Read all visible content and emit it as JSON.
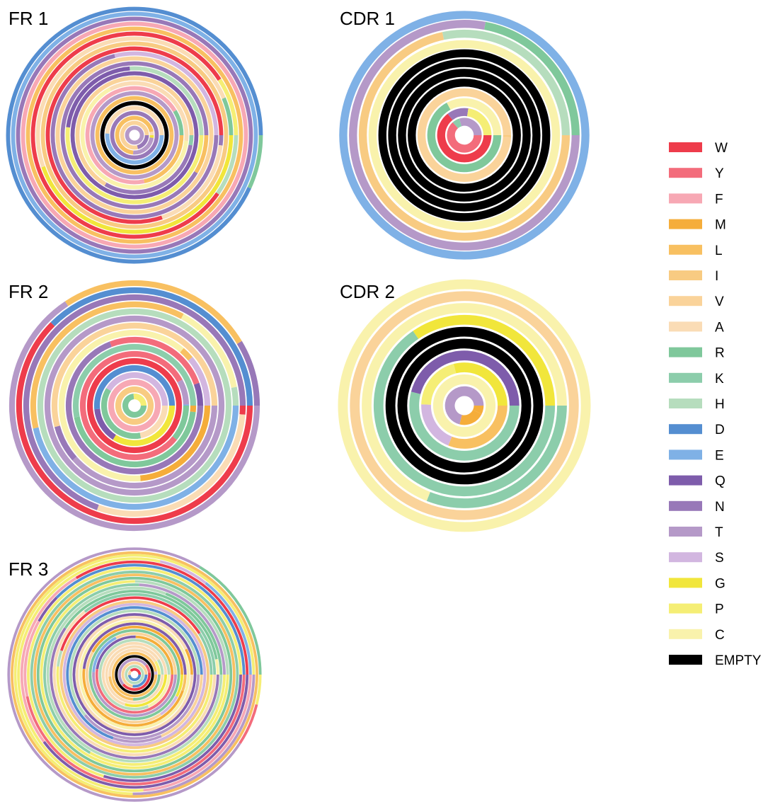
{
  "chart_data": {
    "type": "concentric-ring",
    "palette": {
      "W": "#ee3c4b",
      "Y": "#f36c7b",
      "F": "#f7a8b4",
      "M": "#f5ad3a",
      "L": "#f8c061",
      "I": "#f8cb82",
      "V": "#fad39a",
      "A": "#fadcb5",
      "R": "#7fc89b",
      "K": "#8ccdab",
      "H": "#b6ddbd",
      "D": "#548ed1",
      "E": "#7fb1e6",
      "Q": "#7e5cab",
      "N": "#9878b8",
      "T": "#b599c8",
      "S": "#d2b6e0",
      "G": "#f1e63b",
      "P": "#f5ee75",
      "C": "#f9f2ac",
      "EMPTY": "#000000"
    },
    "legend": {
      "placement": "right",
      "entries": [
        "W",
        "Y",
        "F",
        "M",
        "L",
        "I",
        "V",
        "A",
        "R",
        "K",
        "H",
        "D",
        "E",
        "Q",
        "N",
        "T",
        "S",
        "G",
        "P",
        "C",
        "EMPTY"
      ]
    },
    "panels": [
      {
        "title": "FR 1",
        "rings": 25,
        "empty_rings": [
          5
        ]
      },
      {
        "title": "CDR 1",
        "rings": 12,
        "empty_rings": [
          4,
          5,
          6,
          7
        ]
      },
      {
        "title": "FR 2",
        "rings": 17,
        "empty_rings": []
      },
      {
        "title": "CDR 2",
        "rings": 10,
        "empty_rings": [
          4,
          5
        ]
      },
      {
        "title": "FR 3",
        "rings": 38,
        "empty_rings": [
          4
        ]
      }
    ]
  }
}
